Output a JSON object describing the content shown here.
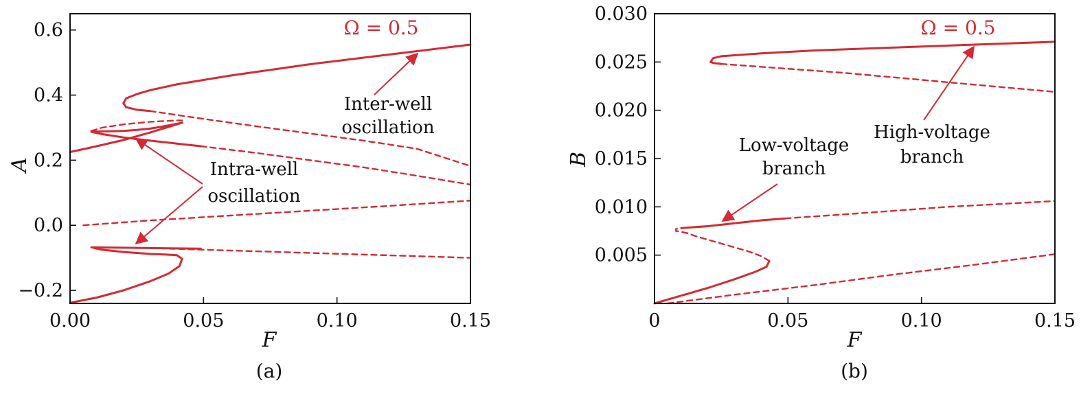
{
  "colors": {
    "curve": "#d42a33",
    "axis": "#111111"
  },
  "chart_data": [
    {
      "type": "line",
      "panel_label": "(a)",
      "xlabel": "F",
      "ylabel": "A",
      "xlim": [
        0,
        0.15
      ],
      "ylim": [
        -0.24,
        0.65
      ],
      "xticks": [
        0,
        0.05,
        0.1,
        0.15
      ],
      "xtick_labels": [
        "0.00",
        "0.05",
        "0.10",
        "0.15"
      ],
      "yticks": [
        -0.2,
        0.0,
        0.2,
        0.4,
        0.6
      ],
      "ytick_labels": [
        "−0.2",
        "0.0",
        "0.2",
        "0.4",
        "0.6"
      ],
      "parameter_label": "Ω = 0.5",
      "annotations": [
        {
          "lines": [
            "Inter-well",
            "oscillation"
          ],
          "arrows_to": [
            [
              0.13,
              0.53
            ]
          ]
        },
        {
          "lines": [
            "Intra-well",
            "oscillation"
          ],
          "arrows_to": [
            [
              0.025,
              0.27
            ],
            [
              0.028,
              -0.07
            ]
          ]
        }
      ],
      "series": [
        {
          "style": "solid",
          "x": [
            0.0,
            0.01,
            0.02,
            0.03,
            0.042,
            0.035,
            0.03,
            0.025,
            0.02,
            0.015,
            0.01,
            0.008
          ],
          "y": [
            0.225,
            0.243,
            0.262,
            0.285,
            0.315,
            0.304,
            0.297,
            0.293,
            0.29,
            0.289,
            0.288,
            0.29
          ]
        },
        {
          "style": "dashed",
          "x": [
            0.008,
            0.012,
            0.02,
            0.03,
            0.04,
            0.042
          ],
          "y": [
            0.29,
            0.3,
            0.31,
            0.318,
            0.322,
            0.322
          ]
        },
        {
          "style": "solid",
          "x": [
            0.008,
            0.012,
            0.02,
            0.03,
            0.04,
            0.049
          ],
          "y": [
            0.287,
            0.28,
            0.27,
            0.26,
            0.251,
            0.243
          ]
        },
        {
          "style": "dashed",
          "x": [
            0.049,
            0.07,
            0.09,
            0.11,
            0.13,
            0.15
          ],
          "y": [
            0.243,
            0.222,
            0.2,
            0.178,
            0.152,
            0.125
          ]
        },
        {
          "style": "solid",
          "x": [
            0.15,
            0.12,
            0.09,
            0.06,
            0.04,
            0.03,
            0.025,
            0.021,
            0.02,
            0.021,
            0.025,
            0.03
          ],
          "y": [
            0.555,
            0.525,
            0.495,
            0.46,
            0.433,
            0.415,
            0.403,
            0.39,
            0.375,
            0.363,
            0.355,
            0.351
          ]
        },
        {
          "style": "dashed",
          "x": [
            0.03,
            0.05,
            0.07,
            0.09,
            0.11,
            0.13,
            0.15
          ],
          "y": [
            0.351,
            0.327,
            0.304,
            0.282,
            0.26,
            0.235,
            0.182
          ]
        },
        {
          "style": "dashed",
          "x": [
            0.005,
            0.03,
            0.06,
            0.09,
            0.12,
            0.15
          ],
          "y": [
            0.0,
            0.015,
            0.03,
            0.045,
            0.06,
            0.076
          ]
        },
        {
          "style": "solid",
          "x": [
            0.0,
            0.01,
            0.02,
            0.03,
            0.037,
            0.041,
            0.042,
            0.04,
            0.036,
            0.03,
            0.02,
            0.012,
            0.009
          ],
          "y": [
            -0.238,
            -0.222,
            -0.2,
            -0.172,
            -0.148,
            -0.125,
            -0.103,
            -0.092,
            -0.09,
            -0.088,
            -0.082,
            -0.075,
            -0.07
          ]
        },
        {
          "style": "solid",
          "x": [
            0.008,
            0.02,
            0.03,
            0.04,
            0.049
          ],
          "y": [
            -0.068,
            -0.069,
            -0.07,
            -0.071,
            -0.072
          ]
        },
        {
          "style": "dashed",
          "x": [
            0.03,
            0.05,
            0.07,
            0.09,
            0.11,
            0.13,
            0.15
          ],
          "y": [
            -0.07,
            -0.075,
            -0.08,
            -0.085,
            -0.09,
            -0.095,
            -0.1
          ]
        }
      ]
    },
    {
      "type": "line",
      "panel_label": "(b)",
      "xlabel": "F",
      "ylabel": "B",
      "xlim": [
        0,
        0.15
      ],
      "ylim": [
        0,
        0.03
      ],
      "xticks": [
        0,
        0.05,
        0.1,
        0.15
      ],
      "xtick_labels": [
        "0",
        "0.05",
        "0.10",
        "0.15"
      ],
      "yticks": [
        0.005,
        0.01,
        0.015,
        0.02,
        0.025,
        0.03
      ],
      "ytick_labels": [
        "0.005",
        "0.010",
        "0.015",
        "0.020",
        "0.025",
        "0.030"
      ],
      "parameter_label": "Ω = 0.5",
      "annotations": [
        {
          "lines": [
            "Low-voltage",
            "branch"
          ],
          "arrows_to": [
            [
              0.026,
              0.0083
            ]
          ]
        },
        {
          "lines": [
            "High-voltage",
            "branch"
          ],
          "arrows_to": [
            [
              0.12,
              0.0268
            ]
          ]
        }
      ],
      "series": [
        {
          "style": "solid",
          "x": [
            0.0,
            0.01,
            0.02,
            0.03,
            0.038,
            0.042,
            0.043
          ],
          "y": [
            0.0,
            0.0008,
            0.0016,
            0.0025,
            0.0033,
            0.0038,
            0.0044
          ]
        },
        {
          "style": "dashed",
          "x": [
            0.043,
            0.04,
            0.035,
            0.03,
            0.025,
            0.02,
            0.015,
            0.012,
            0.01,
            0.008,
            0.008,
            0.01
          ],
          "y": [
            0.0044,
            0.0049,
            0.0054,
            0.0058,
            0.0062,
            0.0066,
            0.007,
            0.0073,
            0.0074,
            0.0075,
            0.0077,
            0.0078
          ]
        },
        {
          "style": "solid",
          "x": [
            0.01,
            0.02,
            0.03,
            0.04,
            0.049
          ],
          "y": [
            0.0078,
            0.008,
            0.0083,
            0.0086,
            0.0088
          ]
        },
        {
          "style": "dashed",
          "x": [
            0.049,
            0.07,
            0.09,
            0.11,
            0.13,
            0.15
          ],
          "y": [
            0.0088,
            0.0092,
            0.0096,
            0.01,
            0.0103,
            0.0106
          ]
        },
        {
          "style": "dashed",
          "x": [
            0.005,
            0.03,
            0.06,
            0.09,
            0.12,
            0.15
          ],
          "y": [
            0.0,
            0.0009,
            0.0019,
            0.003,
            0.004,
            0.0051
          ]
        },
        {
          "style": "solid",
          "x": [
            0.15,
            0.12,
            0.09,
            0.06,
            0.04,
            0.03,
            0.025,
            0.022,
            0.021,
            0.022,
            0.025
          ],
          "y": [
            0.0271,
            0.0268,
            0.0265,
            0.0262,
            0.0259,
            0.0257,
            0.0256,
            0.0254,
            0.025,
            0.0249,
            0.0248
          ]
        },
        {
          "style": "dashed",
          "x": [
            0.025,
            0.05,
            0.07,
            0.09,
            0.11,
            0.13,
            0.15
          ],
          "y": [
            0.0248,
            0.0243,
            0.0239,
            0.0234,
            0.0229,
            0.0224,
            0.0219
          ]
        }
      ]
    }
  ]
}
